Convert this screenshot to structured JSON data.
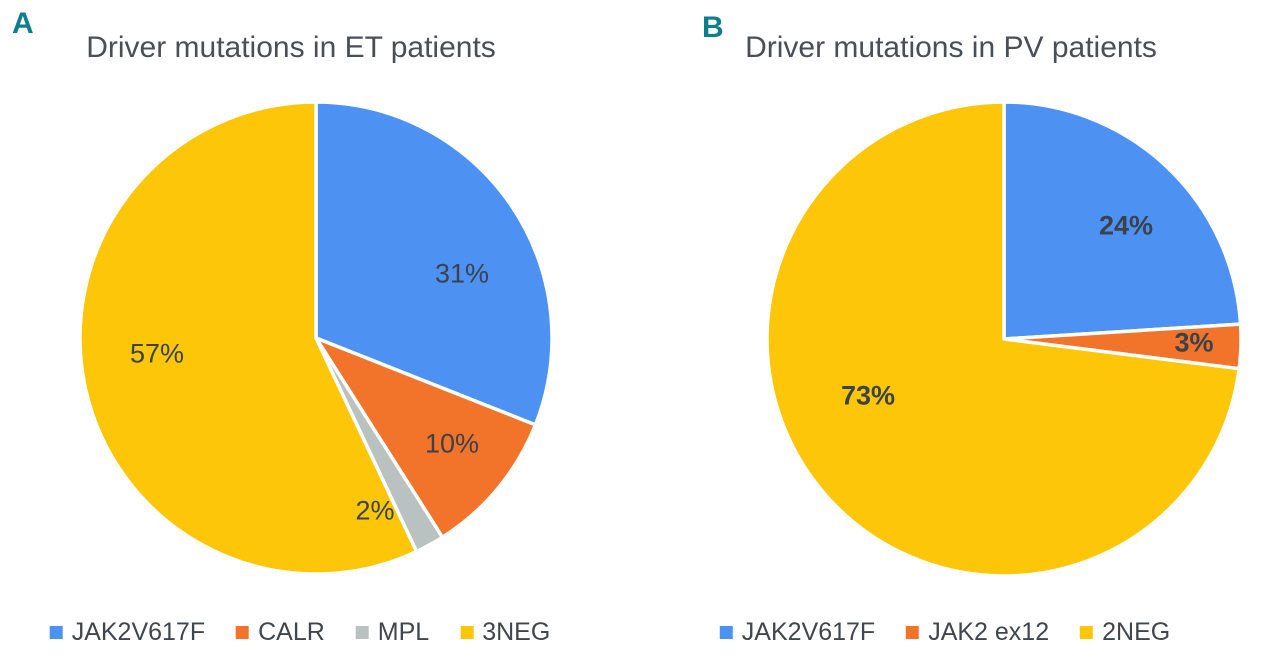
{
  "figure": {
    "background": "#FFFFFF"
  },
  "palette": {
    "blue": "#4D92F2",
    "orange": "#F2732A",
    "gray": "#B9C2C0",
    "yellow": "#FDC608",
    "marker_teal": "#0E7E8C",
    "title_text": "#4A4F55",
    "label_text": "#3B4249",
    "legend_text": "#3F464C",
    "slice_border": "#FFFFFF"
  },
  "chart_data": [
    {
      "type": "pie",
      "panel": "A",
      "title": "Driver mutations in ET patients",
      "categories": [
        "JAK2V617F",
        "CALR",
        "MPL",
        "3NEG"
      ],
      "values": [
        31,
        10,
        2,
        57
      ],
      "labels": [
        "31%",
        "10%",
        "2%",
        "57%"
      ],
      "colors": [
        "blue",
        "orange",
        "gray",
        "yellow"
      ],
      "unit": "percent",
      "start_angle_deg": 0,
      "direction": "clockwise",
      "legend_position": "bottom",
      "label_style": "regular"
    },
    {
      "type": "pie",
      "panel": "B",
      "title": "Driver mutations in PV patients",
      "categories": [
        "JAK2V617F",
        "JAK2 ex12",
        "2NEG"
      ],
      "values": [
        24,
        3,
        73
      ],
      "labels": [
        "24%",
        "3%",
        "73%"
      ],
      "colors": [
        "blue",
        "orange",
        "yellow"
      ],
      "unit": "percent",
      "start_angle_deg": 0,
      "direction": "clockwise",
      "legend_position": "bottom",
      "label_style": "bold"
    }
  ]
}
